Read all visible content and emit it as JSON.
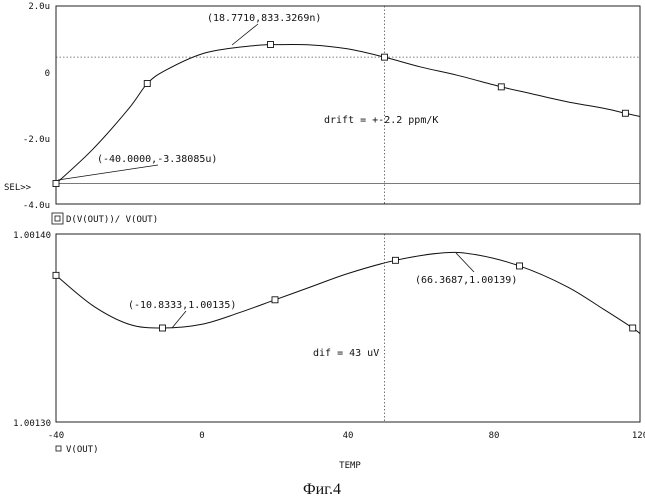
{
  "chart_data": [
    {
      "type": "line",
      "xlim": [
        -40,
        120
      ],
      "ylim": [
        -4.0,
        2.0
      ],
      "yticks": [
        "2.0u",
        "0",
        "-2.0u",
        "-4.0u"
      ],
      "yticks_values": [
        2.0,
        0,
        -2.0,
        -4.0
      ],
      "sel_label": "SEL>>",
      "legend": "D(V(OUT))/ V(OUT)",
      "x": [
        -40,
        -30,
        -20,
        -15,
        -10,
        0,
        10,
        18.77,
        20,
        30,
        40,
        50,
        60,
        70,
        82,
        90,
        100,
        110,
        116,
        120
      ],
      "y": [
        -3.38,
        -2.35,
        -1.1,
        -0.35,
        0.05,
        0.55,
        0.75,
        0.833,
        0.83,
        0.82,
        0.7,
        0.45,
        0.15,
        -0.1,
        -0.45,
        -0.65,
        -0.9,
        -1.1,
        -1.25,
        -1.35
      ],
      "markers": [
        [
          -40,
          -3.38
        ],
        [
          -15,
          -0.35
        ],
        [
          18.77,
          0.833
        ],
        [
          50,
          0.45
        ],
        [
          82,
          -0.45
        ],
        [
          116,
          -1.25
        ]
      ],
      "cursor_lines": [
        {
          "x": 50
        },
        {
          "y": 0.45
        }
      ],
      "baseline_y": -3.38,
      "annotations": [
        "(18.7710,833.3269n)",
        "(-40.0000,-3.38085u)",
        "drift = +-2.2 ppm/K"
      ]
    },
    {
      "type": "line",
      "xlim": [
        -40,
        120
      ],
      "ylim": [
        1.0013,
        1.0014
      ],
      "yticks": [
        "1.00140",
        "1.00130"
      ],
      "yticks_values": [
        1.0014,
        1.0013
      ],
      "xticks": [
        "-40",
        "0",
        "40",
        "80",
        "120"
      ],
      "xticks_values": [
        -40,
        0,
        40,
        80,
        120
      ],
      "xlabel": "TEMP",
      "legend": "V(OUT)",
      "x": [
        -40,
        -30,
        -20,
        -10.83,
        0,
        10,
        20,
        30,
        40,
        53,
        66.37,
        75,
        87,
        100,
        110,
        118,
        120
      ],
      "y": [
        1.001378,
        1.001362,
        1.001352,
        1.00135,
        1.001352,
        1.001358,
        1.001365,
        1.001372,
        1.001379,
        1.001386,
        1.00139,
        1.001389,
        1.001383,
        1.001372,
        1.00136,
        1.00135,
        1.001347
      ],
      "markers": [
        [
          -40,
          1.001378
        ],
        [
          -10.83,
          1.00135
        ],
        [
          20,
          1.001365
        ],
        [
          53,
          1.001386
        ],
        [
          87,
          1.001383
        ],
        [
          118,
          1.00135
        ]
      ],
      "cursor_lines": [
        {
          "x": 50
        }
      ],
      "annotations": [
        "(-10.8333,1.00135)",
        "(66.3687,1.00139)",
        "dif = 43 uV"
      ]
    }
  ],
  "caption": "Фиг.4"
}
